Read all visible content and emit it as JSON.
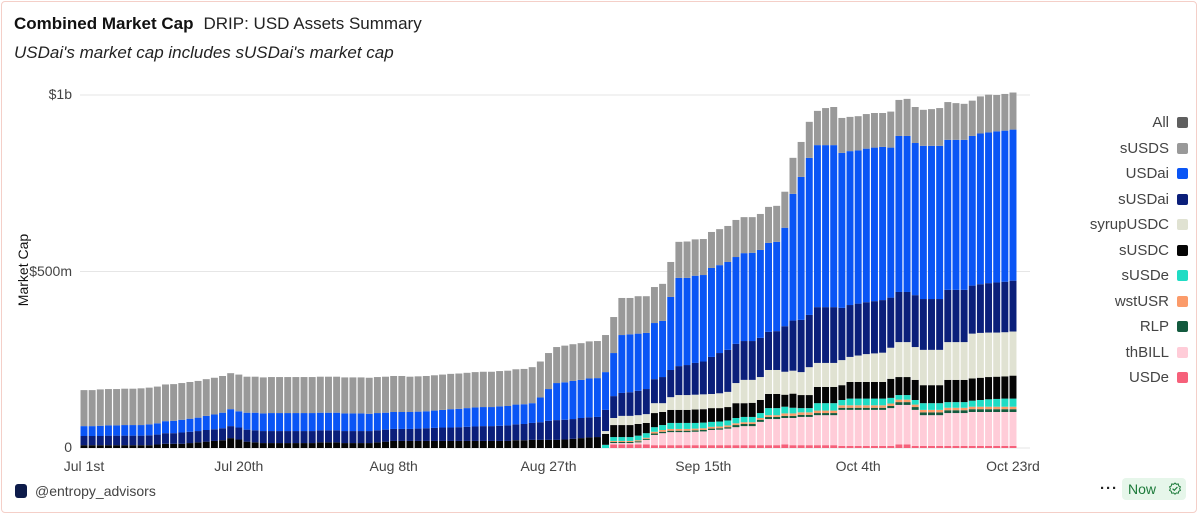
{
  "header": {
    "title": "Combined Market Cap",
    "subtitle_inline": "DRIP: USD Assets Summary",
    "note": "USDai's market cap includes sUSDai's market cap"
  },
  "footer": {
    "handle": "@entropy_advisors",
    "more": "···",
    "freshness": "Now"
  },
  "chart_data": {
    "type": "bar",
    "stacked": true,
    "title": "Combined Market Cap",
    "ylabel": "Market Cap",
    "xlabel": "",
    "units": "USD millions",
    "x_range_days": [
      0,
      114
    ],
    "x_start_label": "Jul 1st",
    "x_ticks": [
      {
        "day": 0,
        "label": "Jul 1st"
      },
      {
        "day": 19,
        "label": "Jul 20th"
      },
      {
        "day": 38,
        "label": "Aug 8th"
      },
      {
        "day": 57,
        "label": "Aug 27th"
      },
      {
        "day": 76,
        "label": "Sep 15th"
      },
      {
        "day": 95,
        "label": "Oct 4th"
      },
      {
        "day": 114,
        "label": "Oct 23rd"
      }
    ],
    "y_ticks": [
      {
        "value": 0,
        "label": "0"
      },
      {
        "value": 500,
        "label": "$500m"
      },
      {
        "value": 1000,
        "label": "$1b"
      }
    ],
    "ylim": [
      0,
      1000
    ],
    "grid": true,
    "legend_position": "right",
    "legend": [
      {
        "name": "All",
        "color": "#5f5f5f"
      },
      {
        "name": "sUSDS",
        "color": "#999999"
      },
      {
        "name": "USDai",
        "color": "#0a55f5"
      },
      {
        "name": "sUSDai",
        "color": "#0b1f7a"
      },
      {
        "name": "syrupUSDC",
        "color": "#e0e2d2"
      },
      {
        "name": "sUSDC",
        "color": "#050505"
      },
      {
        "name": "sUSDe",
        "color": "#1fdcc4"
      },
      {
        "name": "wstUSR",
        "color": "#fb9b6a"
      },
      {
        "name": "RLP",
        "color": "#135a3e"
      },
      {
        "name": "thBILL",
        "color": "#ffccd8"
      },
      {
        "name": "USDe",
        "color": "#f6607a"
      }
    ],
    "series": [
      {
        "name": "USDe",
        "color": "#f6607a",
        "values": [
          0,
          0,
          0,
          0,
          0,
          0,
          0,
          0,
          0,
          0,
          0,
          0,
          0,
          0,
          0,
          0,
          0,
          0,
          0,
          0,
          0,
          0,
          0,
          0,
          0,
          0,
          0,
          0,
          0,
          0,
          0,
          0,
          0,
          0,
          0,
          0,
          0,
          0,
          0,
          0,
          0,
          0,
          0,
          0,
          0,
          0,
          0,
          0,
          0,
          0,
          0,
          0,
          0,
          0,
          0,
          0,
          0,
          0,
          0,
          0,
          0,
          0,
          0,
          0,
          0,
          10,
          10,
          10,
          10,
          10,
          8,
          8,
          8,
          8,
          8,
          8,
          8,
          8,
          8,
          8,
          8,
          8,
          8,
          8,
          8,
          8,
          10,
          8,
          8,
          8,
          8,
          8,
          8,
          6,
          6,
          6,
          6,
          6,
          6,
          6,
          10,
          10,
          6,
          6,
          6,
          6,
          6,
          6,
          6,
          6,
          6,
          6,
          6,
          6,
          6
        ]
      },
      {
        "name": "thBILL",
        "color": "#ffccd8",
        "values": [
          0,
          0,
          0,
          0,
          0,
          0,
          0,
          0,
          0,
          0,
          0,
          0,
          0,
          0,
          0,
          0,
          0,
          0,
          0,
          0,
          0,
          0,
          0,
          0,
          0,
          0,
          0,
          0,
          0,
          0,
          0,
          0,
          0,
          0,
          0,
          0,
          0,
          0,
          0,
          0,
          0,
          0,
          0,
          0,
          0,
          0,
          0,
          0,
          0,
          0,
          0,
          0,
          0,
          0,
          0,
          0,
          0,
          0,
          0,
          0,
          0,
          0,
          0,
          0,
          0,
          4,
          4,
          4,
          6,
          13,
          29,
          34,
          37,
          37,
          37,
          38,
          39,
          43,
          44,
          47,
          51,
          54,
          54,
          66,
          74,
          74,
          75,
          77,
          80,
          80,
          85,
          85,
          85,
          102,
          102,
          102,
          102,
          102,
          102,
          107,
          112,
          112,
          102,
          87,
          87,
          87,
          93,
          93,
          93,
          96,
          96,
          96,
          96,
          96,
          96
        ]
      },
      {
        "name": "RLP",
        "color": "#135a3e",
        "values": [
          0,
          0,
          0,
          0,
          0,
          0,
          0,
          0,
          0,
          0,
          0,
          0,
          0,
          0,
          0,
          0,
          0,
          0,
          0,
          0,
          0,
          0,
          0,
          0,
          0,
          0,
          0,
          0,
          0,
          0,
          0,
          0,
          0,
          0,
          0,
          0,
          0,
          0,
          0,
          0,
          0,
          0,
          0,
          0,
          0,
          0,
          0,
          0,
          0,
          0,
          0,
          0,
          0,
          0,
          0,
          0,
          0,
          0,
          0,
          0,
          0,
          0,
          0,
          0,
          0,
          3,
          3,
          3,
          3,
          3,
          4,
          4,
          4,
          4,
          4,
          4,
          4,
          4,
          4,
          4,
          6,
          6,
          6,
          6,
          6,
          6,
          6,
          6,
          6,
          6,
          6,
          6,
          6,
          6,
          6,
          6,
          6,
          6,
          6,
          6,
          8,
          8,
          8,
          8,
          8,
          8,
          8,
          8,
          8,
          8,
          8,
          8,
          8,
          8,
          8
        ]
      },
      {
        "name": "wstUSR",
        "color": "#fb9b6a",
        "values": [
          0,
          0,
          0,
          0,
          0,
          0,
          0,
          0,
          0,
          0,
          0,
          0,
          0,
          0,
          0,
          0,
          0,
          0,
          0,
          0,
          0,
          0,
          0,
          0,
          0,
          0,
          0,
          0,
          0,
          0,
          0,
          0,
          0,
          0,
          0,
          0,
          0,
          0,
          0,
          0,
          0,
          0,
          0,
          0,
          0,
          0,
          0,
          0,
          0,
          0,
          0,
          0,
          0,
          0,
          0,
          0,
          0,
          0,
          0,
          0,
          0,
          0,
          0,
          0,
          0,
          3,
          3,
          3,
          3,
          3,
          5,
          5,
          5,
          5,
          5,
          5,
          5,
          5,
          5,
          5,
          5,
          5,
          5,
          5,
          5,
          5,
          7,
          7,
          7,
          7,
          7,
          7,
          7,
          7,
          7,
          7,
          7,
          7,
          7,
          7,
          7,
          7,
          7,
          7,
          7,
          7,
          7,
          7,
          7,
          7,
          7,
          7,
          7,
          7,
          7
        ]
      },
      {
        "name": "sUSDe",
        "color": "#1fdcc4",
        "values": [
          0,
          0,
          0,
          0,
          0,
          0,
          0,
          0,
          0,
          0,
          0,
          0,
          0,
          0,
          0,
          0,
          0,
          0,
          0,
          0,
          0,
          0,
          0,
          0,
          0,
          0,
          0,
          0,
          0,
          0,
          0,
          0,
          0,
          0,
          0,
          0,
          0,
          0,
          0,
          0,
          0,
          0,
          0,
          0,
          0,
          0,
          0,
          0,
          0,
          0,
          0,
          0,
          0,
          0,
          0,
          0,
          0,
          0,
          0,
          0,
          0,
          0,
          0,
          0,
          9,
          11,
          11,
          11,
          13,
          13,
          13,
          14,
          17,
          17,
          17,
          16,
          16,
          14,
          14,
          14,
          15,
          15,
          15,
          14,
          20,
          20,
          19,
          16,
          12,
          12,
          21,
          21,
          21,
          15,
          19,
          19,
          19,
          19,
          19,
          16,
          13,
          13,
          13,
          19,
          19,
          19,
          16,
          16,
          16,
          17,
          19,
          21,
          22,
          23,
          23
        ]
      },
      {
        "name": "sUSDC",
        "color": "#050505",
        "values": [
          8,
          8,
          8,
          8,
          8,
          8,
          8,
          8,
          8,
          10,
          12,
          12,
          12,
          14,
          16,
          18,
          20,
          22,
          28,
          24,
          18,
          16,
          14,
          14,
          14,
          14,
          14,
          14,
          14,
          16,
          16,
          16,
          14,
          14,
          14,
          14,
          16,
          18,
          20,
          20,
          20,
          20,
          20,
          20,
          20,
          20,
          20,
          20,
          20,
          20,
          20,
          20,
          20,
          22,
          22,
          23,
          23,
          23,
          23,
          24,
          26,
          28,
          30,
          31,
          31,
          34,
          34,
          34,
          33,
          29,
          40,
          37,
          37,
          37,
          37,
          38,
          38,
          39,
          38,
          38,
          42,
          39,
          40,
          37,
          40,
          40,
          34,
          40,
          37,
          37,
          46,
          46,
          46,
          42,
          47,
          47,
          47,
          47,
          47,
          54,
          51,
          51,
          57,
          51,
          51,
          51,
          63,
          63,
          63,
          63,
          63,
          63,
          63,
          63,
          65
        ]
      },
      {
        "name": "syrupUSDC",
        "color": "#e0e2d2",
        "values": [
          0,
          0,
          0,
          0,
          0,
          0,
          0,
          0,
          0,
          0,
          0,
          0,
          0,
          0,
          0,
          0,
          0,
          0,
          0,
          0,
          0,
          0,
          0,
          0,
          0,
          0,
          0,
          0,
          0,
          0,
          0,
          0,
          0,
          0,
          0,
          0,
          0,
          0,
          0,
          0,
          0,
          0,
          0,
          0,
          0,
          0,
          0,
          0,
          0,
          0,
          0,
          0,
          0,
          0,
          0,
          0,
          0,
          0,
          0,
          0,
          0,
          0,
          0,
          0,
          8,
          20,
          26,
          26,
          25,
          25,
          28,
          25,
          36,
          42,
          42,
          42,
          42,
          40,
          42,
          43,
          57,
          66,
          65,
          65,
          68,
          68,
          65,
          65,
          65,
          79,
          68,
          68,
          68,
          71,
          71,
          75,
          79,
          81,
          83,
          88,
          99,
          99,
          93,
          100,
          100,
          100,
          107,
          107,
          107,
          127,
          127,
          126,
          125,
          125,
          125
        ]
      },
      {
        "name": "sUSDai",
        "color": "#0b1f7a",
        "values": [
          26,
          26,
          26,
          27,
          27,
          27,
          27,
          27,
          28,
          28,
          30,
          30,
          32,
          32,
          32,
          33,
          33,
          34,
          34,
          34,
          34,
          34,
          34,
          34,
          34,
          34,
          34,
          34,
          34,
          34,
          34,
          34,
          34,
          34,
          34,
          34,
          34,
          34,
          34,
          34,
          34,
          35,
          36,
          37,
          38,
          38,
          39,
          40,
          41,
          42,
          42,
          43,
          44,
          45,
          46,
          48,
          50,
          54,
          56,
          56,
          56,
          57,
          57,
          57,
          60,
          62,
          65,
          67,
          69,
          71,
          68,
          74,
          77,
          82,
          85,
          90,
          93,
          105,
          114,
          119,
          111,
          110,
          110,
          111,
          108,
          110,
          129,
          142,
          148,
          148,
          158,
          158,
          158,
          148,
          147,
          147,
          147,
          148,
          149,
          142,
          142,
          142,
          147,
          144,
          144,
          144,
          148,
          148,
          148,
          136,
          138,
          140,
          142,
          143,
          144
        ]
      },
      {
        "name": "USDai",
        "color": "#0a55f5",
        "values": [
          28,
          28,
          29,
          29,
          29,
          30,
          30,
          30,
          31,
          32,
          34,
          35,
          36,
          37,
          38,
          40,
          42,
          44,
          48,
          46,
          48,
          50,
          50,
          51,
          51,
          51,
          51,
          51,
          51,
          50,
          50,
          50,
          50,
          50,
          50,
          49,
          49,
          48,
          48,
          48,
          48,
          48,
          48,
          49,
          50,
          52,
          52,
          53,
          54,
          54,
          54,
          55,
          55,
          56,
          56,
          56,
          70,
          90,
          105,
          106,
          108,
          108,
          110,
          110,
          107,
          122,
          164,
          164,
          162,
          159,
          159,
          159,
          207,
          250,
          247,
          247,
          245,
          252,
          249,
          249,
          246,
          249,
          250,
          249,
          252,
          253,
          279,
          359,
          405,
          445,
          459,
          459,
          459,
          439,
          436,
          434,
          435,
          435,
          434,
          425,
          442,
          442,
          431,
          434,
          434,
          434,
          425,
          425,
          425,
          424,
          427,
          427,
          428,
          428,
          428
        ]
      },
      {
        "name": "sUSDS",
        "color": "#999999",
        "values": [
          102,
          102,
          103,
          103,
          103,
          103,
          103,
          104,
          104,
          104,
          104,
          104,
          104,
          104,
          104,
          104,
          104,
          104,
          102,
          104,
          102,
          102,
          102,
          102,
          102,
          102,
          102,
          102,
          102,
          102,
          102,
          102,
          102,
          102,
          102,
          102,
          102,
          102,
          102,
          102,
          100,
          100,
          100,
          100,
          100,
          100,
          100,
          100,
          100,
          100,
          100,
          100,
          100,
          100,
          100,
          102,
          102,
          102,
          102,
          104,
          104,
          104,
          105,
          105,
          105,
          102,
          105,
          103,
          106,
          104,
          102,
          105,
          99,
          102,
          103,
          103,
          102,
          102,
          102,
          102,
          105,
          102,
          101,
          102,
          102,
          102,
          102,
          102,
          99,
          102,
          97,
          105,
          108,
          99,
          97,
          97,
          98,
          98,
          96,
          102,
          102,
          105,
          102,
          102,
          104,
          107,
          107,
          104,
          102,
          100,
          105,
          107,
          103,
          104,
          105
        ]
      }
    ]
  }
}
